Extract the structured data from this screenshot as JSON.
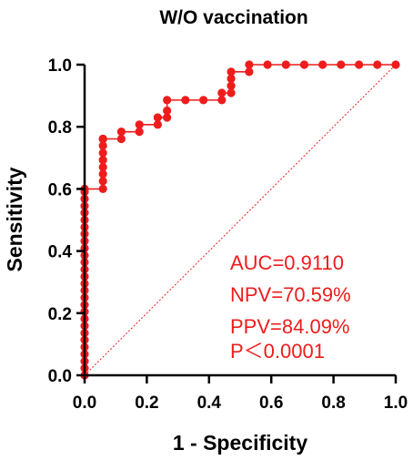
{
  "chart_data": {
    "type": "line",
    "title": "W/O vaccination",
    "xlabel": "1 - Specificity",
    "ylabel": "Sensitivity",
    "xlim": [
      0,
      1
    ],
    "ylim": [
      0,
      1
    ],
    "x_ticks": [
      "0.0",
      "0.2",
      "0.4",
      "0.6",
      "0.8",
      "1.0"
    ],
    "y_ticks": [
      "0.0",
      "0.2",
      "0.4",
      "0.6",
      "0.8",
      "1.0"
    ],
    "grid": false,
    "colors": {
      "roc": "#ee1c1c",
      "reference": "#ee1c1c",
      "annotation": "#ee1c1c",
      "axis": "#000000"
    },
    "series": [
      {
        "type": "step-line-markers",
        "x": [
          0,
          0,
          0,
          0,
          0,
          0,
          0,
          0,
          0,
          0,
          0,
          0,
          0,
          0,
          0,
          0,
          0,
          0,
          0,
          0,
          0,
          0,
          0,
          0,
          0,
          0,
          0,
          0,
          0.059,
          0.059,
          0.059,
          0.059,
          0.059,
          0.059,
          0.059,
          0.059,
          0.059,
          0.059,
          0.118,
          0.118,
          0.176,
          0.176,
          0.235,
          0.235,
          0.265,
          0.265,
          0.265,
          0.324,
          0.382,
          0.441,
          0.441,
          0.471,
          0.471,
          0.471,
          0.471,
          0.529,
          0.529,
          0.588,
          0.647,
          0.706,
          0.765,
          0.824,
          0.882,
          0.941,
          1.0
        ],
        "y": [
          0,
          0.023,
          0.045,
          0.068,
          0.091,
          0.114,
          0.136,
          0.159,
          0.182,
          0.205,
          0.227,
          0.25,
          0.273,
          0.295,
          0.318,
          0.341,
          0.364,
          0.386,
          0.409,
          0.432,
          0.455,
          0.477,
          0.5,
          0.523,
          0.545,
          0.568,
          0.591,
          0.6,
          0.6,
          0.625,
          0.648,
          0.67,
          0.693,
          0.716,
          0.739,
          0.761,
          0.761,
          0.761,
          0.761,
          0.784,
          0.784,
          0.807,
          0.807,
          0.83,
          0.83,
          0.852,
          0.886,
          0.886,
          0.886,
          0.886,
          0.909,
          0.909,
          0.932,
          0.955,
          0.977,
          0.977,
          1.0,
          1.0,
          1.0,
          1.0,
          1.0,
          1.0,
          1.0,
          1.0,
          1.0
        ]
      },
      {
        "type": "reference-diagonal",
        "x": [
          0,
          1
        ],
        "y": [
          0,
          1
        ]
      }
    ],
    "annotations": [
      "AUC=0.9110",
      "NPV=70.59%",
      "PPV=84.09%",
      "P＜0.0001"
    ]
  }
}
